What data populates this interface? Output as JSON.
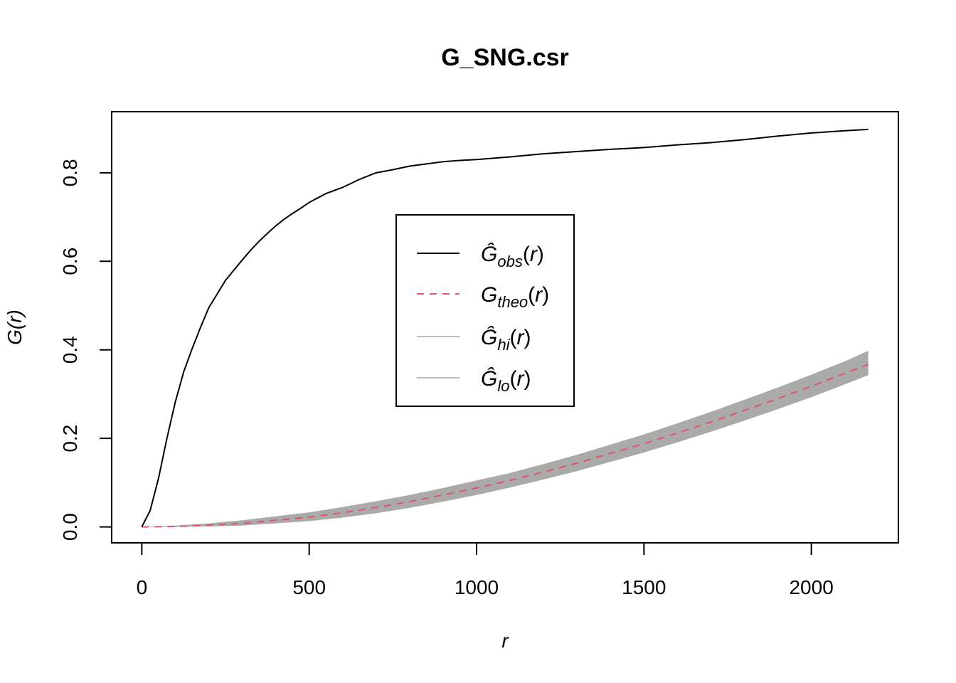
{
  "chart_data": {
    "type": "line",
    "title": "G_SNG.csr",
    "xlabel": "r",
    "ylabel": "G(r)",
    "xlim": [
      -90,
      2260
    ],
    "ylim": [
      -0.036,
      0.938
    ],
    "x_ticks": [
      0,
      500,
      1000,
      1500,
      2000
    ],
    "x_tick_labels": [
      "0",
      "500",
      "1000",
      "1500",
      "2000"
    ],
    "y_ticks": [
      0.0,
      0.2,
      0.4,
      0.6,
      0.8
    ],
    "y_tick_labels": [
      "0.0",
      "0.2",
      "0.4",
      "0.6",
      "0.8"
    ],
    "grid": false,
    "legend_position": "center",
    "colors": {
      "obs": "#000000",
      "theo": "#DF536B",
      "envelope": "#AAAAAA",
      "legend_envelope": "#BEBEBE"
    },
    "legend": [
      {
        "base": "Ĝ",
        "sub": "obs",
        "arg": "(r)",
        "style": "solid",
        "color": "#000000"
      },
      {
        "base": "G",
        "sub": "theo",
        "arg": "(r)",
        "style": "dashed",
        "color": "#DF536B"
      },
      {
        "base": "Ĝ",
        "sub": "hi",
        "arg": "(r)",
        "style": "solid",
        "color": "#BEBEBE"
      },
      {
        "base": "Ĝ",
        "sub": "lo",
        "arg": "(r)",
        "style": "solid",
        "color": "#BEBEBE"
      }
    ],
    "series": [
      {
        "name": "obs",
        "x": [
          0,
          25,
          50,
          75,
          100,
          125,
          150,
          175,
          200,
          225,
          250,
          275,
          300,
          325,
          350,
          375,
          400,
          425,
          450,
          475,
          500,
          525,
          550,
          575,
          600,
          650,
          700,
          750,
          800,
          850,
          900,
          950,
          1000,
          1100,
          1200,
          1300,
          1400,
          1500,
          1600,
          1700,
          1800,
          1900,
          2000,
          2100,
          2170
        ],
        "y": [
          0.0,
          0.037,
          0.11,
          0.2,
          0.282,
          0.35,
          0.402,
          0.45,
          0.495,
          0.526,
          0.557,
          0.58,
          0.603,
          0.625,
          0.645,
          0.663,
          0.68,
          0.695,
          0.708,
          0.72,
          0.733,
          0.743,
          0.753,
          0.76,
          0.767,
          0.785,
          0.8,
          0.807,
          0.815,
          0.82,
          0.825,
          0.828,
          0.83,
          0.836,
          0.843,
          0.848,
          0.853,
          0.857,
          0.863,
          0.868,
          0.875,
          0.883,
          0.89,
          0.895,
          0.898
        ]
      },
      {
        "name": "theo",
        "x": [
          0,
          100,
          200,
          300,
          400,
          500,
          600,
          700,
          800,
          900,
          1000,
          1100,
          1200,
          1300,
          1400,
          1500,
          1600,
          1700,
          1800,
          1900,
          2000,
          2100,
          2170
        ],
        "y": [
          0.0,
          0.001,
          0.004,
          0.008,
          0.015,
          0.022,
          0.032,
          0.044,
          0.057,
          0.072,
          0.088,
          0.105,
          0.124,
          0.144,
          0.166,
          0.188,
          0.212,
          0.237,
          0.263,
          0.29,
          0.318,
          0.347,
          0.367
        ]
      },
      {
        "name": "hi",
        "x": [
          0,
          100,
          200,
          300,
          400,
          500,
          600,
          700,
          800,
          900,
          1000,
          1100,
          1200,
          1300,
          1400,
          1500,
          1600,
          1700,
          1800,
          1900,
          2000,
          2100,
          2170
        ],
        "y": [
          0.0,
          0.003,
          0.008,
          0.015,
          0.024,
          0.033,
          0.045,
          0.058,
          0.072,
          0.088,
          0.105,
          0.122,
          0.142,
          0.163,
          0.186,
          0.209,
          0.234,
          0.26,
          0.287,
          0.315,
          0.344,
          0.374,
          0.398
        ]
      },
      {
        "name": "lo",
        "x": [
          0,
          100,
          200,
          300,
          400,
          500,
          600,
          700,
          800,
          900,
          1000,
          1100,
          1200,
          1300,
          1400,
          1500,
          1600,
          1700,
          1800,
          1900,
          2000,
          2100,
          2170
        ],
        "y": [
          0.0,
          0.0,
          0.001,
          0.003,
          0.008,
          0.013,
          0.021,
          0.031,
          0.043,
          0.057,
          0.072,
          0.089,
          0.107,
          0.126,
          0.147,
          0.168,
          0.191,
          0.215,
          0.24,
          0.266,
          0.293,
          0.322,
          0.343
        ]
      }
    ]
  }
}
